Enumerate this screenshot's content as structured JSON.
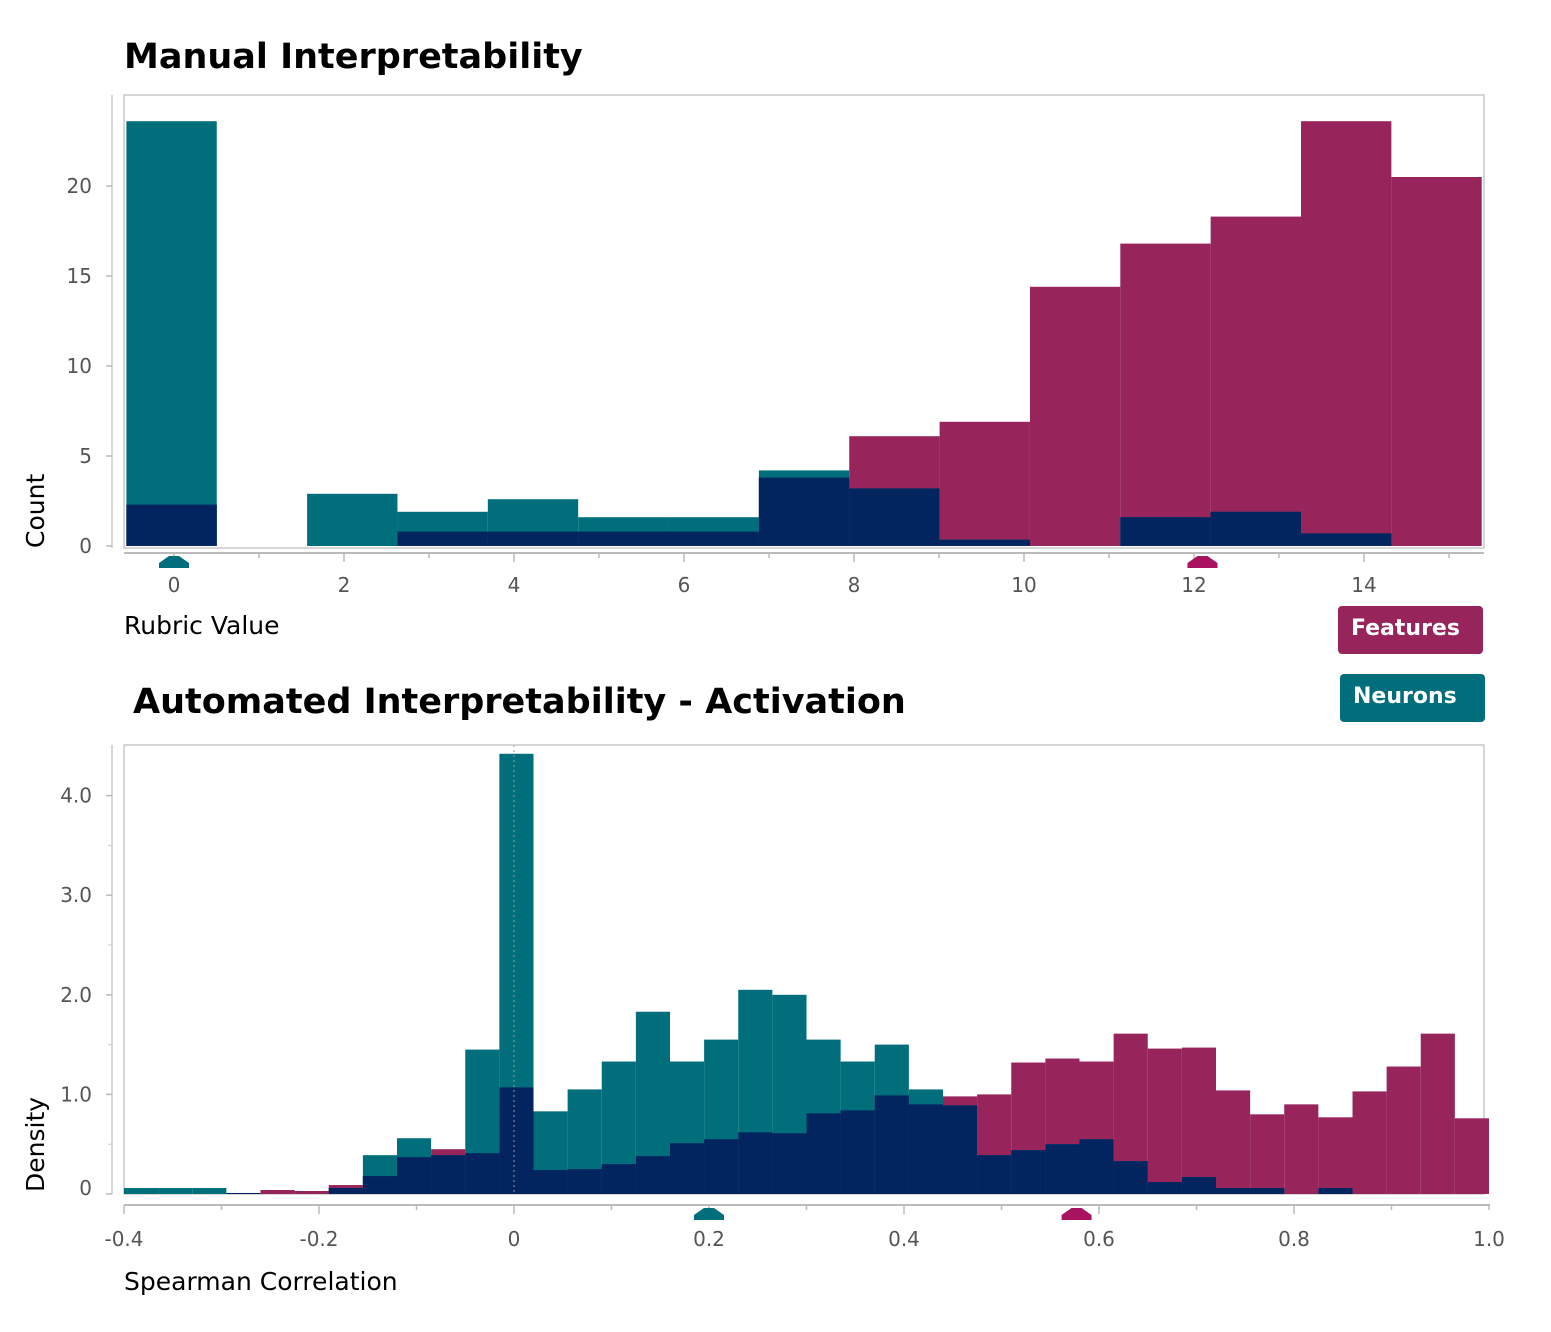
{
  "colors": {
    "features": "#97245b",
    "neurons": "#006f7b",
    "overlap": "#02255f",
    "features_mean_marker": "#a8135f",
    "neurons_mean_marker": "#006f7b"
  },
  "legend": [
    {
      "label": "Features",
      "color": "#97245b"
    },
    {
      "label": "Neurons",
      "color": "#006f7b"
    }
  ],
  "chart_data": [
    {
      "type": "histogram",
      "title": "Manual Interpretability",
      "xlabel": "Rubric Value",
      "ylabel": "Count",
      "xlim": [
        -0.6,
        15.4
      ],
      "ylim": [
        0,
        25
      ],
      "x_ticks": [
        "0",
        "2",
        "4",
        "6",
        "8",
        "10",
        "12",
        "14"
      ],
      "y_ticks": [
        "0",
        "5",
        "10",
        "15",
        "20"
      ],
      "bin_start": -0.56,
      "bin_width": 1.063,
      "series": [
        {
          "name": "Features",
          "values": [
            2.3,
            0,
            0,
            0.8,
            0.8,
            0.8,
            0.8,
            3.8,
            6.1,
            6.9,
            14.4,
            16.8,
            18.3,
            23.6,
            20.5
          ],
          "mean": 12.1
        },
        {
          "name": "Neurons",
          "values": [
            23.6,
            0,
            2.9,
            1.9,
            2.6,
            1.6,
            1.6,
            4.2,
            3.2,
            0.35,
            0,
            1.6,
            1.9,
            0.7,
            0
          ],
          "mean": 0.0
        }
      ]
    },
    {
      "type": "histogram",
      "title": "Automated Interpretability -  Activation",
      "xlabel": "Spearman Correlation",
      "ylabel": "Density",
      "xlim": [
        -0.4,
        1.0
      ],
      "ylim": [
        0,
        4.5
      ],
      "x_ticks": [
        "-0.4",
        "-0.2",
        "0",
        "0.2",
        "0.4",
        "0.6",
        "0.8",
        "1.0"
      ],
      "y_ticks": [
        "0",
        "1.0",
        "2.0",
        "3.0",
        "4.0"
      ],
      "bin_start": -0.4,
      "bin_width": 0.035,
      "reference_line": 0,
      "series": [
        {
          "name": "Features",
          "values": [
            0,
            0,
            0,
            0.01,
            0.04,
            0.03,
            0.09,
            0.18,
            0.37,
            0.45,
            0.41,
            1.07,
            0.24,
            0.25,
            0.3,
            0.38,
            0.51,
            0.55,
            0.62,
            0.61,
            0.81,
            0.84,
            0.99,
            0.9,
            0.98,
            1.0,
            1.32,
            1.36,
            1.33,
            1.61,
            1.46,
            1.47,
            1.04,
            0.8,
            0.9,
            0.77,
            1.03,
            1.28,
            1.61,
            0.76
          ],
          "mean": 0.577
        },
        {
          "name": "Neurons",
          "values": [
            0.06,
            0.06,
            0.06,
            0.01,
            0,
            0,
            0.06,
            0.39,
            0.56,
            0.39,
            1.45,
            4.42,
            0.83,
            1.05,
            1.33,
            1.83,
            1.33,
            1.55,
            2.05,
            2.0,
            1.55,
            1.33,
            1.5,
            1.05,
            0.89,
            0.39,
            0.44,
            0.5,
            0.55,
            0.33,
            0.12,
            0.17,
            0.06,
            0.06,
            0,
            0.06,
            0,
            0,
            0,
            0
          ],
          "mean": 0.2
        }
      ]
    }
  ]
}
